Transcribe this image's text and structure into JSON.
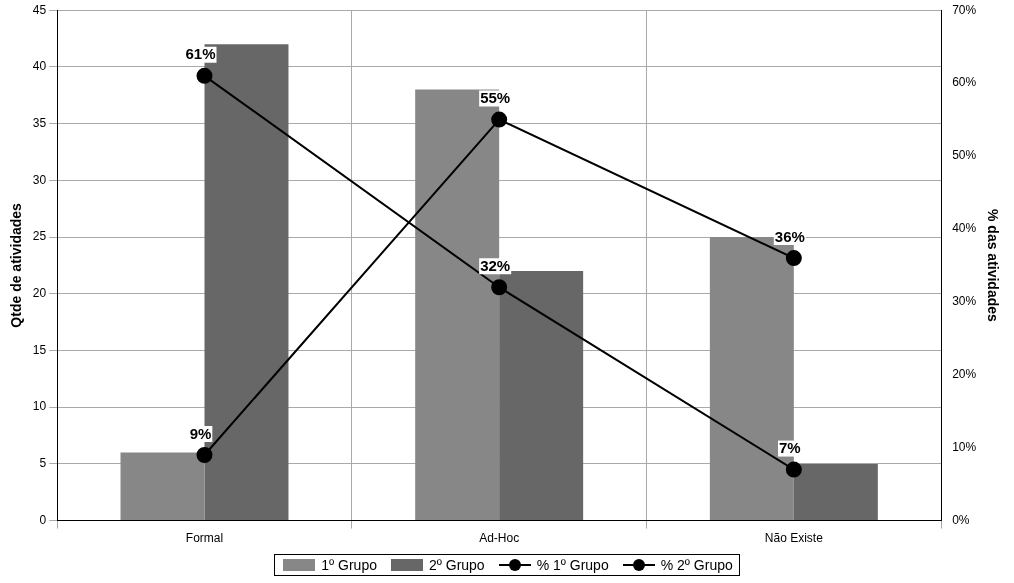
{
  "chart_data": {
    "type": "bar",
    "categories": [
      "Formal",
      "Ad-Hoc",
      "Não Existe"
    ],
    "ylabel": "Qtde de atividades",
    "y2label": "% das atividades",
    "ylim": [
      0,
      45
    ],
    "yticks": [
      0,
      5,
      10,
      15,
      20,
      25,
      30,
      35,
      40,
      45
    ],
    "y2lim": [
      0,
      70
    ],
    "y2ticks": [
      {
        "value": 0,
        "label": "0%"
      },
      {
        "value": 10,
        "label": "10%"
      },
      {
        "value": 20,
        "label": "20%"
      },
      {
        "value": 30,
        "label": "30%"
      },
      {
        "value": 40,
        "label": "40%"
      },
      {
        "value": 50,
        "label": "50%"
      },
      {
        "value": 60,
        "label": "60%"
      },
      {
        "value": 70,
        "label": "70%"
      }
    ],
    "grid": true,
    "legend": "bottom",
    "marker": "circle",
    "series": [
      {
        "name": "1º Grupo",
        "color": "#878787",
        "values": [
          6,
          38,
          25
        ]
      },
      {
        "name": "2º Grupo",
        "color": "#676767",
        "values": [
          42,
          22,
          5
        ]
      },
      {
        "name": "% 1º Grupo",
        "type": "line",
        "axis": "y2",
        "color": "#000000",
        "values": [
          9,
          55,
          36
        ],
        "value_labels": [
          "9%",
          "55%",
          "36%"
        ]
      },
      {
        "name": "% 2º Grupo",
        "type": "line",
        "axis": "y2",
        "color": "#000000",
        "values": [
          61,
          32,
          7
        ],
        "value_labels": [
          "61%",
          "32%",
          "7%"
        ]
      }
    ]
  }
}
